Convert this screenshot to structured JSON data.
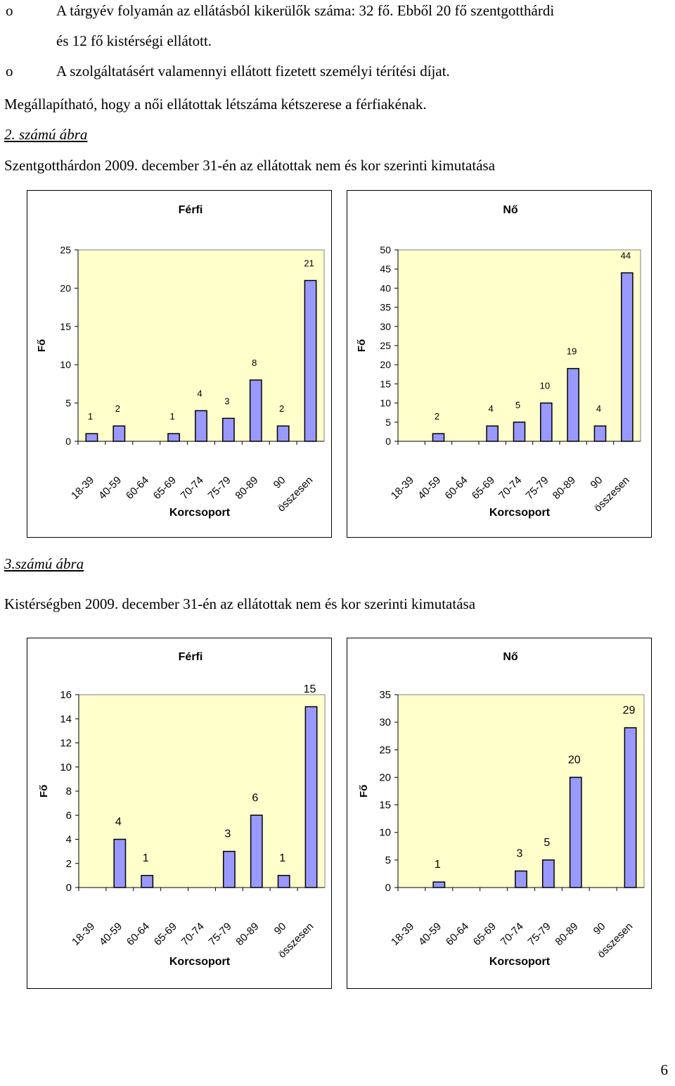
{
  "text": {
    "bullet_marker": "o",
    "line1": "A tárgyév folyamán az ellátásból kikerülők száma: 32 fő. Ebből 20 fő szentgotthárdi",
    "line2": "és 12 fő kistérségi ellátott.",
    "line3": "A szolgáltatásért valamennyi ellátott fizetett személyi térítési díjat.",
    "line4": "Megállapítható, hogy a női ellátottak létszáma kétszerese a férfiakénak.",
    "fig2_label": "2. számú ábra",
    "fig2_caption": "Szentgotthárdon 2009. december 31-én az ellátottak nem és kor szerinti kimutatása",
    "fig3_label": "3.számú ábra",
    "fig3_caption": "Kistérségben 2009. december 31-én az ellátottak nem és kor szerinti kimutatása",
    "page_number": "6"
  },
  "colors": {
    "bar_fill": "#9999ff",
    "plot_bg": "#ffffcc",
    "bar_stroke": "#000000"
  },
  "chart_data": [
    {
      "type": "bar",
      "title": "Férfi",
      "xlabel": "Korcsoport",
      "ylabel": "Fő",
      "ylim": [
        0,
        25
      ],
      "yticks": [
        0,
        5,
        10,
        15,
        20,
        25
      ],
      "categories": [
        "18-39",
        "40-59",
        "60-64",
        "65-69",
        "70-74",
        "75-79",
        "80-89",
        "90",
        "összesen"
      ],
      "values": [
        1,
        2,
        null,
        1,
        4,
        3,
        8,
        2,
        21
      ]
    },
    {
      "type": "bar",
      "title": "Nő",
      "xlabel": "Korcsoport",
      "ylabel": "Fő",
      "ylim": [
        0,
        50
      ],
      "yticks": [
        0,
        5,
        10,
        15,
        20,
        25,
        30,
        35,
        40,
        45,
        50
      ],
      "categories": [
        "18-39",
        "40-59",
        "60-64",
        "65-69",
        "70-74",
        "75-79",
        "80-89",
        "90",
        "összesen"
      ],
      "values": [
        null,
        2,
        null,
        4,
        5,
        10,
        19,
        4,
        44
      ]
    },
    {
      "type": "bar",
      "title": "Férfi",
      "xlabel": "Korcsoport",
      "ylabel": "Fő",
      "ylim": [
        0,
        16
      ],
      "yticks": [
        0,
        2,
        4,
        6,
        8,
        10,
        12,
        14,
        16
      ],
      "categories": [
        "18-39",
        "40-59",
        "60-64",
        "65-69",
        "70-74",
        "75-79",
        "80-89",
        "90",
        "összesen"
      ],
      "values": [
        null,
        4,
        1,
        null,
        null,
        3,
        6,
        1,
        15
      ]
    },
    {
      "type": "bar",
      "title": "Nő",
      "xlabel": "Korcsoport",
      "ylabel": "Fő",
      "ylim": [
        0,
        35
      ],
      "yticks": [
        0,
        5,
        10,
        15,
        20,
        25,
        30,
        35
      ],
      "categories": [
        "18-39",
        "40-59",
        "60-64",
        "65-69",
        "70-74",
        "75-79",
        "80-89",
        "90",
        "összesen"
      ],
      "values": [
        null,
        1,
        null,
        null,
        3,
        5,
        20,
        null,
        29
      ]
    }
  ]
}
